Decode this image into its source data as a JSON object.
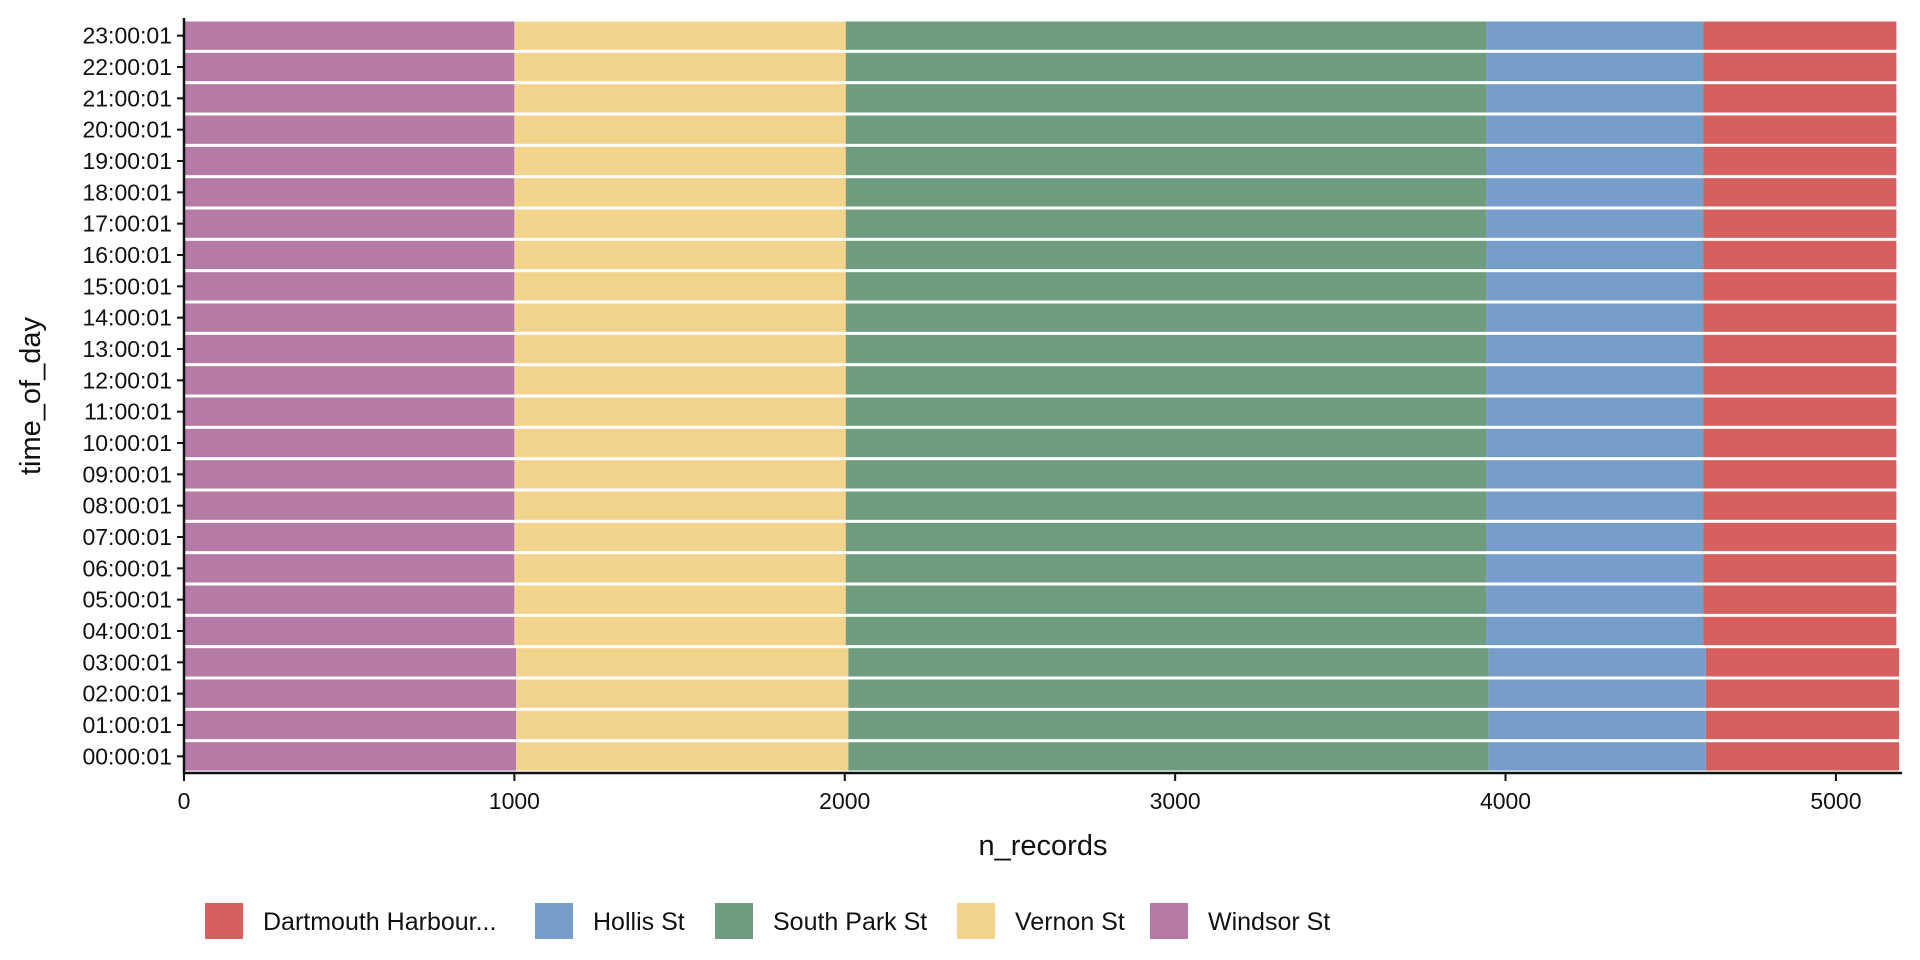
{
  "chart_data": {
    "type": "bar",
    "orientation": "horizontal",
    "stacked": true,
    "xlabel": "n_records",
    "ylabel": "time_of_day",
    "xlim": [
      0,
      5200
    ],
    "x_ticks": [
      0,
      1000,
      2000,
      3000,
      4000,
      5000
    ],
    "grid": false,
    "legend_position": "bottom",
    "categories": [
      "00:00:01",
      "01:00:01",
      "02:00:01",
      "03:00:01",
      "04:00:01",
      "05:00:01",
      "06:00:01",
      "07:00:01",
      "08:00:01",
      "09:00:01",
      "10:00:01",
      "11:00:01",
      "12:00:01",
      "13:00:01",
      "14:00:01",
      "15:00:01",
      "16:00:01",
      "17:00:01",
      "18:00:01",
      "19:00:01",
      "20:00:01",
      "21:00:01",
      "22:00:01",
      "23:00:01"
    ],
    "stack_order": [
      "Windsor St",
      "Vernon St",
      "South Park St",
      "Hollis St",
      "Dartmouth Harbour..."
    ],
    "series": [
      {
        "name": "Dartmouth Harbour...",
        "color": "#d65f5f",
        "values": [
          585,
          585,
          585,
          585,
          585,
          585,
          585,
          585,
          585,
          585,
          585,
          585,
          585,
          585,
          585,
          585,
          585,
          585,
          585,
          585,
          585,
          585,
          585,
          585
        ]
      },
      {
        "name": "Hollis St",
        "color": "#779ecb",
        "values": [
          657,
          657,
          657,
          657,
          657,
          657,
          657,
          657,
          657,
          657,
          657,
          657,
          657,
          657,
          657,
          657,
          657,
          657,
          657,
          657,
          657,
          657,
          657,
          657
        ]
      },
      {
        "name": "South Park St",
        "color": "#6f9c7f",
        "values": [
          1938,
          1938,
          1938,
          1938,
          1938,
          1938,
          1938,
          1938,
          1938,
          1938,
          1938,
          1938,
          1938,
          1938,
          1938,
          1938,
          1938,
          1938,
          1938,
          1938,
          1938,
          1938,
          1938,
          1938
        ]
      },
      {
        "name": "Vernon St",
        "color": "#f2d48d",
        "values": [
          1006,
          1006,
          1006,
          1006,
          1003,
          1003,
          1003,
          1003,
          1003,
          1003,
          1003,
          1003,
          1003,
          1003,
          1003,
          1003,
          1003,
          1003,
          1003,
          1003,
          1003,
          1003,
          1003,
          1003
        ]
      },
      {
        "name": "Windsor St",
        "color": "#b57aa6",
        "values": [
          1005,
          1005,
          1005,
          1005,
          1000,
          1000,
          1000,
          1000,
          1000,
          1000,
          1000,
          1000,
          1000,
          1000,
          1000,
          1000,
          1000,
          1000,
          1000,
          1000,
          1000,
          1000,
          1000,
          1000
        ]
      }
    ]
  }
}
